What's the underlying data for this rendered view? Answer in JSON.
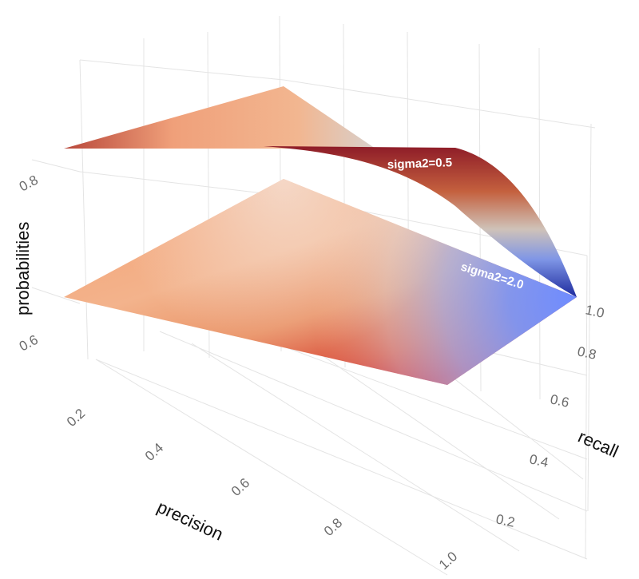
{
  "chart_data": {
    "type": "surface",
    "xlabel": "precision",
    "ylabel": "recall",
    "zlabel": "probabilities",
    "x_ticks": [
      "0.2",
      "0.4",
      "0.6",
      "0.8",
      "1.0"
    ],
    "y_ticks": [
      "0.2",
      "0.4",
      "0.6",
      "0.8",
      "1.0"
    ],
    "z_ticks": [
      "0.6",
      "0.8"
    ],
    "x_range": [
      0,
      1
    ],
    "y_range": [
      0,
      1
    ],
    "grid": true,
    "colorscale": [
      "#1f2fa8",
      "#8aa2ff",
      "#dcdcdc",
      "#f4a67a",
      "#c81e3a"
    ],
    "series": [
      {
        "name": "sigma2=0.5",
        "label": "sigma2=0.5",
        "corners": {
          "p0_r0": 0.86,
          "p1_r0": 0.86,
          "p0_r1": 0.9,
          "p1_r1": 0.66
        }
      },
      {
        "name": "sigma2=2.0",
        "label": "sigma2=2.0",
        "corners": {
          "p0_r0": 0.62,
          "p1_r0": 0.57,
          "p0_r1": 0.79,
          "p1_r1": 0.66
        }
      }
    ]
  }
}
